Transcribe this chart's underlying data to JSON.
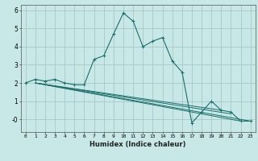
{
  "xlabel": "Humidex (Indice chaleur)",
  "bg_color": "#c8e8e8",
  "grid_color": "#a8c8c8",
  "line_color": "#1a6e6a",
  "series": [
    [
      0,
      2.0
    ],
    [
      1,
      2.2
    ],
    [
      2,
      2.1
    ],
    [
      3,
      2.2
    ],
    [
      4,
      2.0
    ],
    [
      5,
      1.9
    ],
    [
      6,
      1.9
    ],
    [
      7,
      3.3
    ],
    [
      8,
      3.5
    ],
    [
      9,
      4.7
    ],
    [
      10,
      5.85
    ],
    [
      11,
      5.4
    ],
    [
      12,
      4.0
    ],
    [
      13,
      4.3
    ],
    [
      14,
      4.5
    ],
    [
      15,
      3.2
    ],
    [
      16,
      2.6
    ],
    [
      17,
      -0.2
    ],
    [
      18,
      0.4
    ],
    [
      19,
      1.0
    ],
    [
      20,
      0.5
    ],
    [
      21,
      0.4
    ],
    [
      22,
      -0.1
    ],
    [
      23,
      -0.1
    ]
  ],
  "fan_lines": [
    [
      [
        1,
        2.0
      ],
      [
        23,
        -0.1
      ]
    ],
    [
      [
        1,
        2.0
      ],
      [
        22,
        -0.1
      ]
    ],
    [
      [
        1,
        2.0
      ],
      [
        21,
        0.3
      ]
    ],
    [
      [
        1,
        2.0
      ],
      [
        20,
        0.5
      ]
    ]
  ],
  "xlim": [
    -0.5,
    23.5
  ],
  "ylim": [
    -0.7,
    6.3
  ],
  "xticks": [
    0,
    1,
    2,
    3,
    4,
    5,
    6,
    7,
    8,
    9,
    10,
    11,
    12,
    13,
    14,
    15,
    16,
    17,
    18,
    19,
    20,
    21,
    22,
    23
  ],
  "yticks": [
    0,
    1,
    2,
    3,
    4,
    5,
    6
  ],
  "ytick_labels": [
    "-0",
    "1",
    "2",
    "3",
    "4",
    "5",
    "6"
  ]
}
